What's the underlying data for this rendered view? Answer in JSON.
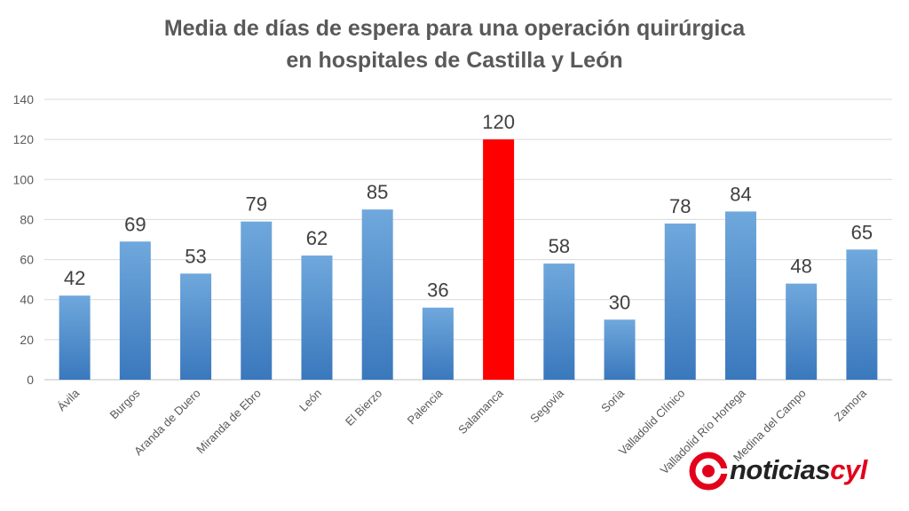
{
  "header": {
    "title_line1": "Media de días de espera para una operación quirúrgica",
    "title_line2": "en hospitales de Castilla y León"
  },
  "logo": {
    "text_main": "noticias",
    "text_accent": "cyl",
    "accent_color": "#e3001b"
  },
  "chart_data": {
    "type": "bar",
    "title": "Media de días de espera para una operación quirúrgica en hospitales de Castilla y León",
    "xlabel": "",
    "ylabel": "",
    "ylim": [
      0,
      140
    ],
    "yticks": [
      0,
      20,
      40,
      60,
      80,
      100,
      120,
      140
    ],
    "grid": true,
    "categories": [
      "Ávila",
      "Burgos",
      "Aranda de Duero",
      "Miranda de Ebro",
      "León",
      "El Bierzo",
      "Palencia",
      "Salamanca",
      "Segovia",
      "Soria",
      "Valladolid Clínico",
      "Valladolid Río Hortega",
      "Medina del Campo",
      "Zamora"
    ],
    "values": [
      42,
      69,
      53,
      79,
      62,
      85,
      36,
      120,
      58,
      30,
      78,
      84,
      48,
      65
    ],
    "highlight_category": "Salamanca",
    "colors": {
      "bar": "#5b9bd5",
      "bar_dark": "#3f7fc0",
      "highlight": "#ff0000",
      "grid": "#d9d9d9",
      "text": "#595959"
    }
  }
}
